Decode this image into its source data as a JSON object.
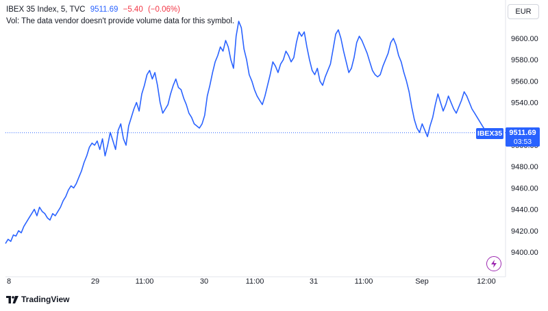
{
  "legend": {
    "title": "IBEX 35 Index, 5, TVC",
    "last": "9511.69",
    "change": "−5.40",
    "change_pct": "(−0.06%)",
    "volume_note": "Vol: The data vendor doesn't provide volume data for this symbol."
  },
  "currency_button": "EUR",
  "symbol_tag": "IBEX35",
  "price_tag": {
    "price": "9511.69",
    "countdown": "03:53"
  },
  "brand": "TradingView",
  "icons": {
    "logo": "tradingview-logo-icon",
    "lightning": "lightning-icon"
  },
  "colors": {
    "line": "#2962ff",
    "negative": "#f23645",
    "accent": "#9c27b0"
  },
  "chart_data": {
    "type": "line",
    "symbol": "IBEX 35 Index",
    "interval": "5",
    "x_tick_labels": [
      "8",
      "29",
      "11:00",
      "30",
      "11:00",
      "31",
      "11:00",
      "Sep",
      "12:00"
    ],
    "y_ticks": [
      9400,
      9420,
      9440,
      9460,
      9480,
      9500,
      9520,
      9540,
      9560,
      9580,
      9600
    ],
    "ylim": [
      9387,
      9640
    ],
    "last_value": 9511.69,
    "grid": false,
    "series": [
      {
        "values": [
          9408,
          9412,
          9410,
          9416,
          9415,
          9420,
          9418,
          9424,
          9428,
          9432,
          9436,
          9440,
          9434,
          9442,
          9438,
          9436,
          9432,
          9430,
          9436,
          9434,
          9438,
          9442,
          9448,
          9452,
          9458,
          9462,
          9460,
          9464,
          9470,
          9476,
          9484,
          9490,
          9498,
          9502,
          9500,
          9504,
          9496,
          9506,
          9490,
          9500,
          9512,
          9504,
          9496,
          9514,
          9520,
          9506,
          9500,
          9518,
          9526,
          9534,
          9540,
          9532,
          9548,
          9556,
          9566,
          9570,
          9562,
          9568,
          9556,
          9540,
          9530,
          9534,
          9538,
          9548,
          9556,
          9562,
          9554,
          9552,
          9544,
          9538,
          9530,
          9526,
          9520,
          9518,
          9516,
          9520,
          9528,
          9546,
          9556,
          9568,
          9578,
          9584,
          9592,
          9588,
          9598,
          9592,
          9580,
          9572,
          9602,
          9616,
          9610,
          9590,
          9580,
          9566,
          9560,
          9552,
          9546,
          9542,
          9538,
          9546,
          9556,
          9566,
          9578,
          9574,
          9568,
          9576,
          9580,
          9588,
          9584,
          9578,
          9582,
          9596,
          9606,
          9602,
          9606,
          9592,
          9580,
          9570,
          9566,
          9572,
          9560,
          9556,
          9564,
          9570,
          9576,
          9590,
          9604,
          9608,
          9600,
          9588,
          9578,
          9568,
          9572,
          9582,
          9596,
          9602,
          9598,
          9592,
          9586,
          9578,
          9570,
          9566,
          9564,
          9566,
          9574,
          9580,
          9586,
          9596,
          9600,
          9594,
          9584,
          9578,
          9568,
          9560,
          9550,
          9536,
          9524,
          9516,
          9512,
          9520,
          9514,
          9508,
          9518,
          9526,
          9538,
          9548,
          9540,
          9532,
          9538,
          9546,
          9540,
          9534,
          9530,
          9536,
          9542,
          9550,
          9546,
          9540,
          9534,
          9530,
          9526,
          9522,
          9518,
          9514,
          9511.69
        ]
      }
    ]
  }
}
